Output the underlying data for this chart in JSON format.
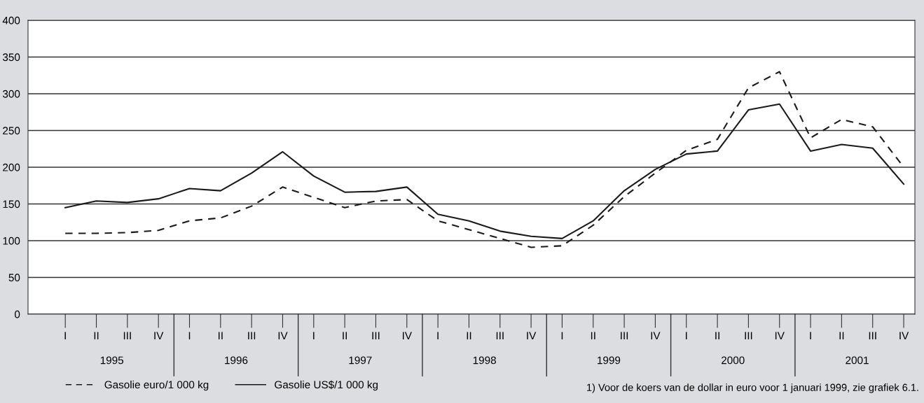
{
  "chart_data": {
    "type": "line",
    "categories": [
      "I",
      "II",
      "III",
      "IV",
      "I",
      "II",
      "III",
      "IV",
      "I",
      "II",
      "III",
      "IV",
      "I",
      "II",
      "III",
      "IV",
      "I",
      "II",
      "III",
      "IV",
      "I",
      "II",
      "III",
      "IV",
      "I",
      "II",
      "III",
      "IV"
    ],
    "series": [
      {
        "name": "Gasolie euro/1 000 kg",
        "color": "#1a1a1a",
        "line_style": "dashed",
        "values": [
          110,
          110,
          111,
          114,
          127,
          131,
          147,
          173,
          159,
          145,
          154,
          156,
          127,
          115,
          103,
          91,
          93,
          121,
          160,
          192,
          223,
          238,
          308,
          330,
          240,
          265,
          255,
          200
        ]
      },
      {
        "name": "Gasolie US$/1 000 kg",
        "color": "#1a1a1a",
        "line_style": "solid",
        "values": [
          145,
          154,
          152,
          157,
          171,
          168,
          192,
          221,
          188,
          166,
          167,
          173,
          136,
          127,
          113,
          106,
          103,
          127,
          168,
          197,
          218,
          222,
          278,
          286,
          222,
          231,
          226,
          177
        ]
      }
    ],
    "ylim": [
      0,
      400
    ],
    "yticks": [
      0,
      50,
      100,
      150,
      200,
      250,
      300,
      350,
      400
    ],
    "grid": "y",
    "legend": "bottom left",
    "marker": "none",
    "annotations": [
      "1995",
      "1996",
      "1997",
      "1998",
      "1999",
      "2000",
      "2001",
      "1) Voor de koers van de dollar in euro voor 1 januari 1999, zie grafiek 6.1."
    ]
  }
}
